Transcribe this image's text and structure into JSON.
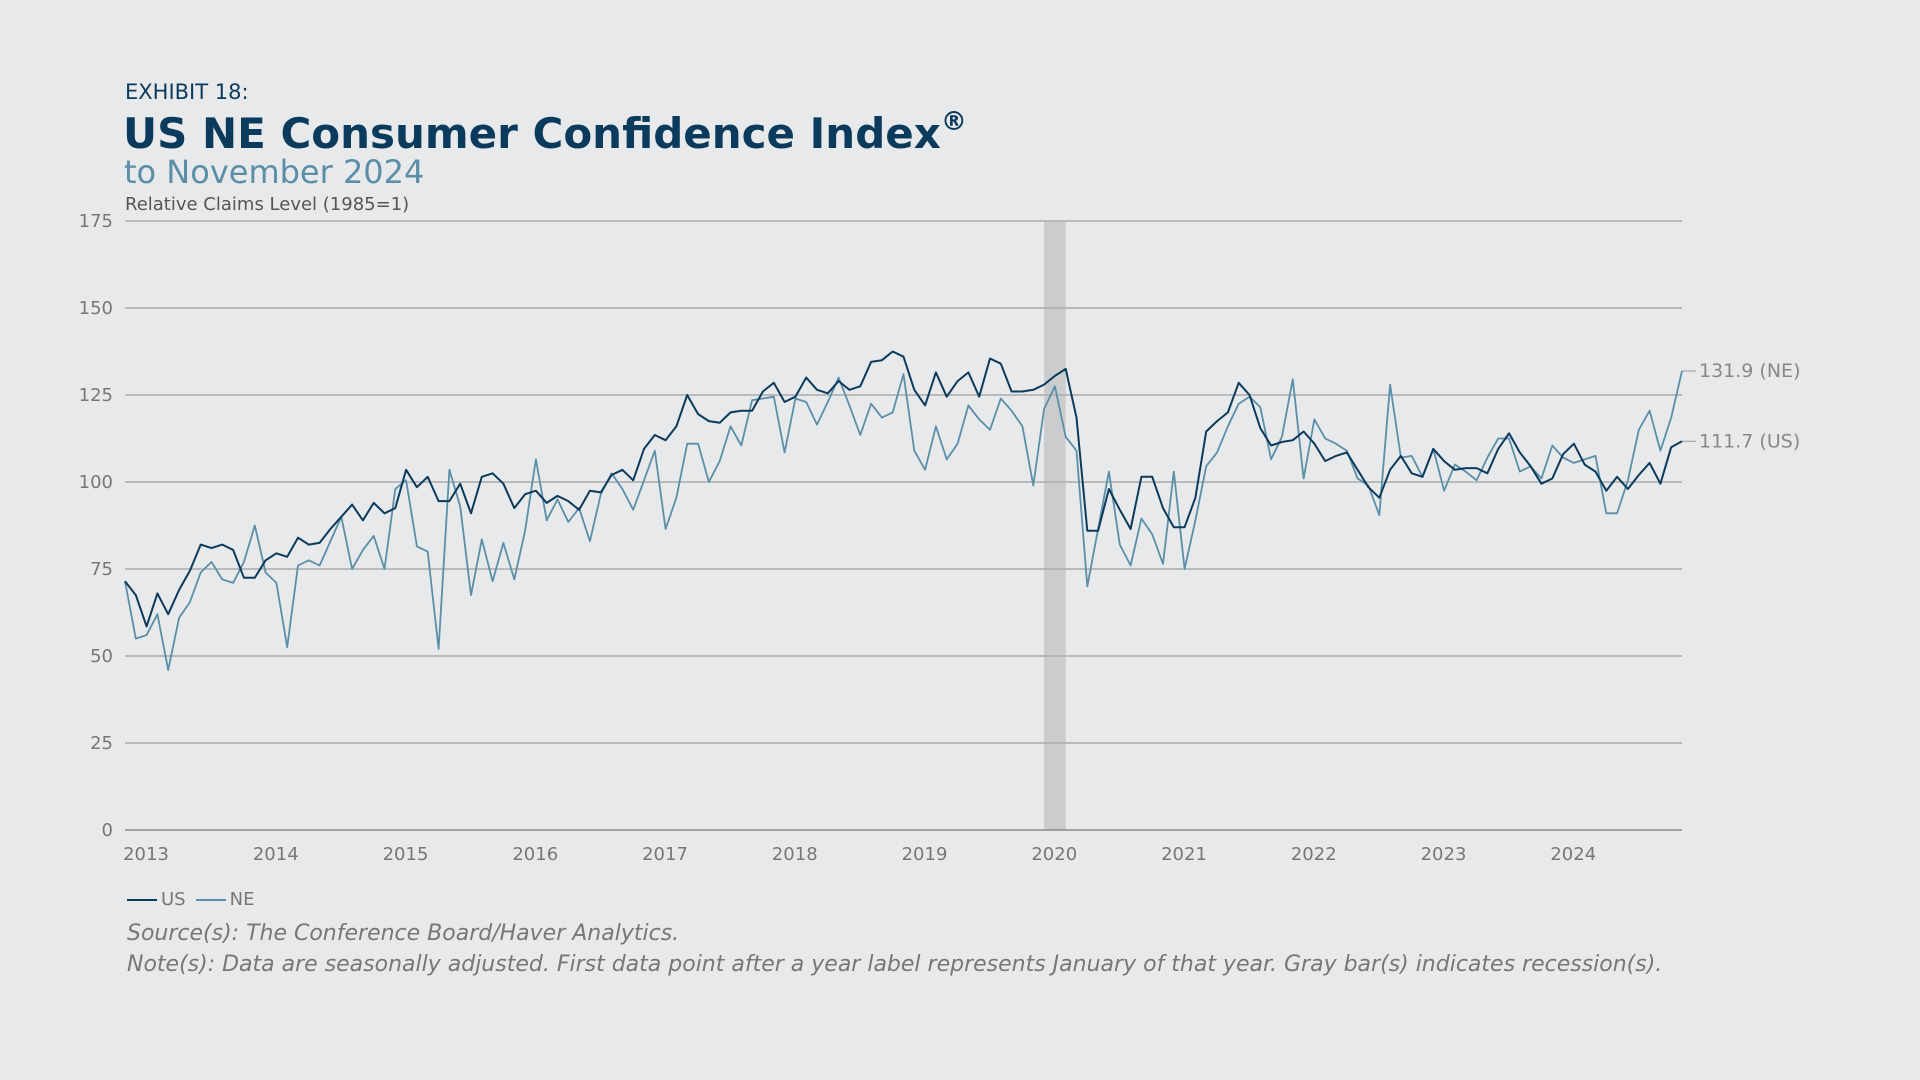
{
  "header": {
    "exhibit": "EXHIBIT 18:",
    "title": "US NE Consumer Confidence Index",
    "title_mark": "®",
    "subtitle": "to November 2024",
    "unit_label": "Relative Claims Level (1985=1)"
  },
  "legend": [
    {
      "name": "US",
      "color": "#0b3b5c"
    },
    {
      "name": "NE",
      "color": "#5b8fa8"
    }
  ],
  "footer": {
    "source": "Source(s): The Conference Board/Haver Analytics.",
    "note": "Note(s): Data are seasonally adjusted. First data point after a year label represents January of that year. Gray bar(s) indicates recession(s)."
  },
  "chart_data": {
    "type": "line",
    "x_start": "2013-01",
    "x_end": "2024-11",
    "xlim": [
      2013.0,
      2025.0
    ],
    "ylim": [
      0,
      175
    ],
    "yticks": [
      0,
      25,
      50,
      75,
      100,
      125,
      150,
      175
    ],
    "ytick_labels": [
      "0",
      "25",
      "50",
      "75",
      "100",
      "125",
      "150",
      "175"
    ],
    "xtick_labels": [
      "2013",
      "2014",
      "2015",
      "2016",
      "2017",
      "2018",
      "2019",
      "2020",
      "2021",
      "2022",
      "2023",
      "2024"
    ],
    "grid": true,
    "legend_position": "bottom-left",
    "recession_bands": [
      [
        "2020-02",
        "2020-04"
      ]
    ],
    "end_labels": [
      "131.9 (NE)",
      "111.7 (US)"
    ],
    "series": [
      {
        "name": "US",
        "color": "#0b3b5c",
        "values": [
          71.5,
          67.5,
          58.5,
          68,
          62,
          69,
          74.5,
          82,
          81,
          82,
          80.5,
          72.5,
          72.5,
          77.5,
          79.5,
          78.5,
          84,
          82,
          82.5,
          86.5,
          90,
          93.5,
          89,
          94,
          91,
          92.5,
          103.5,
          98.5,
          101.5,
          94.5,
          94.5,
          99.5,
          91,
          101.5,
          102.5,
          99.5,
          92.5,
          96.5,
          97.5,
          94,
          96,
          94.5,
          92,
          97.5,
          97,
          102,
          103.5,
          100.5,
          109.5,
          113.5,
          112,
          116,
          125,
          119.5,
          117.5,
          117,
          120,
          120.5,
          120.5,
          126,
          128.5,
          123,
          124.5,
          130,
          126.5,
          125.5,
          129,
          126.5,
          127.5,
          134.5,
          135,
          137.5,
          136,
          126.5,
          122,
          131.5,
          124.5,
          129,
          131.5,
          124.5,
          135.5,
          134,
          126,
          126,
          126.5,
          128,
          130.5,
          132.5,
          118.5,
          86,
          86,
          98,
          92,
          86.5,
          101.5,
          101.5,
          92.5,
          87,
          87,
          95.5,
          114.5,
          117.5,
          120,
          128.5,
          125,
          115.5,
          110.5,
          111.5,
          112,
          114.5,
          111,
          106,
          107.5,
          108.5,
          103.5,
          98.5,
          95.5,
          103.5,
          107.5,
          102.5,
          101.5,
          109.5,
          106,
          103.5,
          104,
          104,
          102.5,
          109.5,
          114,
          108.5,
          104.5,
          99.5,
          101,
          108,
          111,
          105,
          103,
          97.5,
          101.5,
          98,
          102,
          105.5,
          99.5,
          110,
          111.7
        ]
      },
      {
        "name": "NE",
        "color": "#5b8fa8",
        "values": [
          71.5,
          55,
          56,
          62,
          46,
          61,
          65.5,
          74,
          77,
          72,
          71,
          77,
          87.5,
          74,
          71,
          52.5,
          76,
          77.5,
          76,
          83,
          90,
          75,
          80.5,
          84.5,
          75,
          98,
          100.5,
          81.5,
          80,
          52,
          103.5,
          93,
          67.5,
          83.5,
          71.5,
          82.5,
          72,
          86,
          106.5,
          89,
          95,
          88.5,
          92.5,
          83,
          96.5,
          102.5,
          98,
          92,
          100.5,
          109,
          86.5,
          95.5,
          111,
          111,
          100,
          106,
          116,
          110.5,
          123.5,
          124,
          124.5,
          108.5,
          124,
          123,
          116.5,
          123,
          130,
          122,
          113.5,
          122.5,
          118.5,
          120,
          131,
          109,
          103.5,
          116,
          106.5,
          111,
          122,
          118,
          115,
          124,
          120.5,
          116,
          99,
          121,
          127.5,
          113,
          109,
          70,
          86.5,
          103,
          82,
          76,
          89.5,
          85,
          76.5,
          103,
          75,
          89,
          104.5,
          108.5,
          116,
          122.5,
          124.5,
          121.5,
          106.5,
          113,
          129.5,
          101,
          118,
          112.5,
          111,
          109,
          101,
          99,
          90.5,
          128,
          107,
          107.5,
          101.5,
          109.5,
          97.5,
          105,
          103,
          100.5,
          107,
          112.5,
          112.5,
          103,
          104.5,
          101,
          110.5,
          107,
          105.5,
          106.5,
          107.5,
          91,
          91,
          100.5,
          115,
          120.5,
          109,
          118.5,
          131.9
        ]
      }
    ]
  }
}
